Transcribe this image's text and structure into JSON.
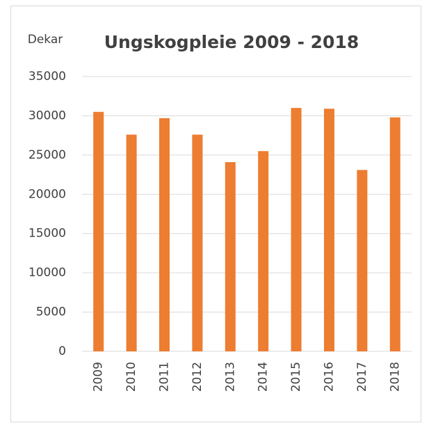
{
  "chart_data": {
    "type": "bar",
    "title": "Ungskogpleie 2009 - 2018",
    "y_label": "Dekar",
    "categories": [
      "2009",
      "2010",
      "2011",
      "2012",
      "2013",
      "2014",
      "2015",
      "2016",
      "2017",
      "2018"
    ],
    "values": [
      30500,
      27600,
      29700,
      27600,
      24100,
      25500,
      31000,
      30900,
      23100,
      29800
    ],
    "color": "#ed7d31",
    "ylim": [
      0,
      35000
    ],
    "yticks": [
      0,
      5000,
      10000,
      15000,
      20000,
      25000,
      30000,
      35000
    ],
    "grid": true
  }
}
